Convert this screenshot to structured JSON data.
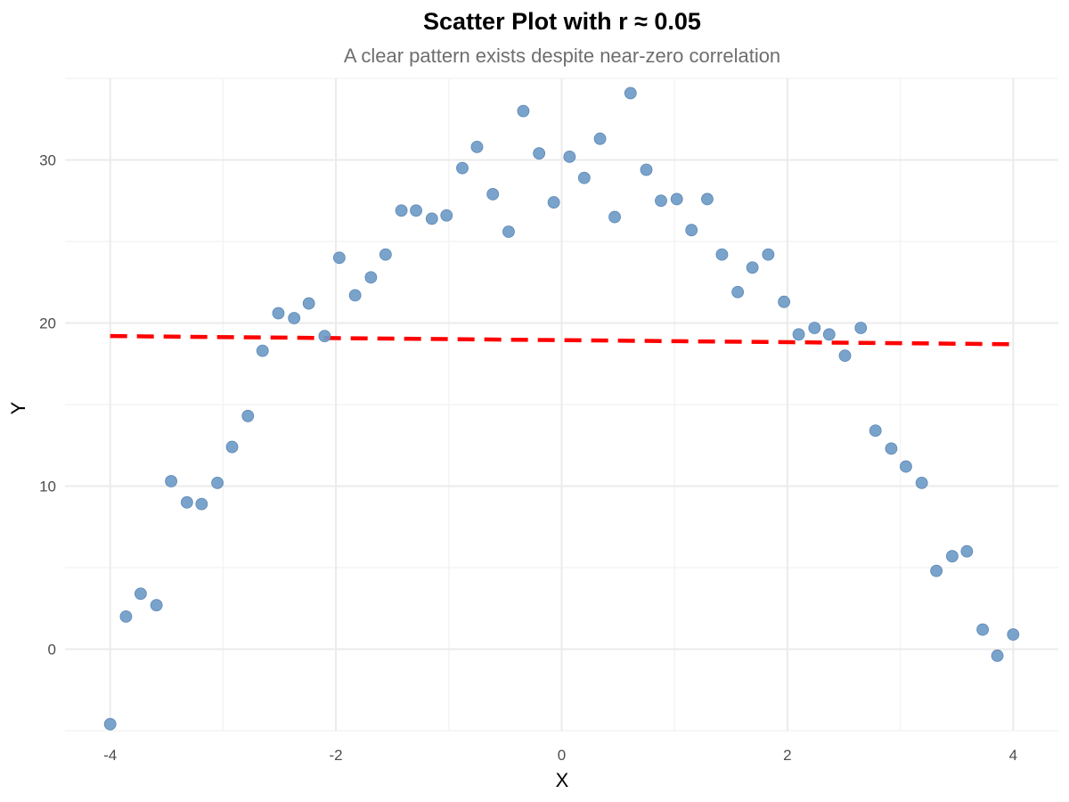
{
  "chart_data": {
    "type": "scatter",
    "title": "Scatter Plot with r ≈ 0.05",
    "subtitle": "A clear pattern exists despite near-zero correlation",
    "xlabel": "X",
    "ylabel": "Y",
    "xlim": [
      -4.4,
      4.4
    ],
    "ylim": [
      -5,
      35
    ],
    "x_ticks": [
      -4,
      -2,
      0,
      2,
      4
    ],
    "x_tick_labels": [
      "-4",
      "-2",
      "0",
      "2",
      "4"
    ],
    "y_ticks": [
      0,
      10,
      20,
      30
    ],
    "y_tick_labels": [
      "0",
      "10",
      "20",
      "30"
    ],
    "grid": true,
    "point_color": "#6f9bc8",
    "trend_color": "#ff0000",
    "trend_line": {
      "style": "dashed",
      "x": [
        -4,
        4
      ],
      "y": [
        19.2,
        18.7
      ]
    },
    "series": [
      {
        "name": "points",
        "x": [
          -4.0,
          -3.86,
          -3.73,
          -3.59,
          -3.46,
          -3.32,
          -3.19,
          -3.05,
          -2.92,
          -2.78,
          -2.65,
          -2.51,
          -2.37,
          -2.24,
          -2.1,
          -1.97,
          -1.83,
          -1.69,
          -1.56,
          -1.42,
          -1.29,
          -1.15,
          -1.02,
          -0.88,
          -0.75,
          -0.61,
          -0.47,
          -0.34,
          -0.2,
          -0.07,
          0.07,
          0.2,
          0.34,
          0.47,
          0.61,
          0.75,
          0.88,
          1.02,
          1.15,
          1.29,
          1.42,
          1.56,
          1.69,
          1.83,
          1.97,
          2.1,
          2.24,
          2.37,
          2.51,
          2.65,
          2.78,
          2.92,
          3.05,
          3.19,
          3.32,
          3.46,
          3.59,
          3.73,
          3.86,
          4.0
        ],
        "y": [
          -4.6,
          2.0,
          3.4,
          2.7,
          10.3,
          9.0,
          8.9,
          10.2,
          12.4,
          14.3,
          18.3,
          20.6,
          20.3,
          21.2,
          19.2,
          24.0,
          21.7,
          22.8,
          24.2,
          26.9,
          26.9,
          26.4,
          26.6,
          29.5,
          30.8,
          27.9,
          25.6,
          33.0,
          30.4,
          27.4,
          30.2,
          28.9,
          31.3,
          26.5,
          34.1,
          29.4,
          27.5,
          27.6,
          25.7,
          27.6,
          24.2,
          21.9,
          23.4,
          24.2,
          21.3,
          19.3,
          19.7,
          19.3,
          18.0,
          19.7,
          13.4,
          12.3,
          11.2,
          10.2,
          4.8,
          5.7,
          6.0,
          1.2,
          -0.4,
          0.9
        ]
      }
    ]
  }
}
